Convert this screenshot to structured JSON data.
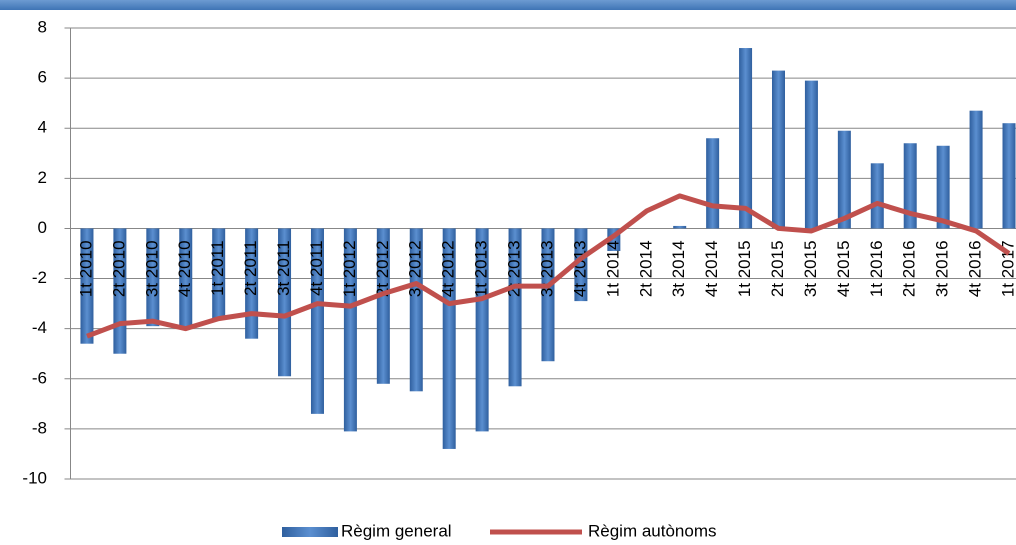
{
  "chart_data": {
    "type": "bar-line",
    "categories": [
      "1t 2010",
      "2t 2010",
      "3t 2010",
      "4t 2010",
      "1t 2011",
      "2t 2011",
      "3t 2011",
      "4t 2011",
      "1t 2012",
      "2t 2012",
      "3t 2012",
      "4t 2012",
      "1t 2013",
      "2t 2013",
      "3t 2013",
      "4t 2013",
      "1t 2014",
      "2t 2014",
      "3t 2014",
      "4t 2014",
      "1t 2015",
      "2t 2015",
      "3t 2015",
      "4t 2015",
      "1t 2016",
      "2t 2016",
      "3t 2016",
      "4t 2016",
      "1t 2017"
    ],
    "series": [
      {
        "name": "Règim general",
        "type": "bar",
        "color": "#4a7ebb",
        "values": [
          -4.6,
          -5.0,
          -3.9,
          -3.9,
          -3.6,
          -4.4,
          -5.9,
          -7.4,
          -8.1,
          -6.2,
          -6.5,
          -8.8,
          -8.1,
          -6.3,
          -5.3,
          -2.9,
          -0.9,
          0.0,
          0.1,
          3.6,
          7.2,
          6.3,
          5.9,
          3.9,
          2.6,
          3.4,
          3.3,
          4.7,
          4.2
        ]
      },
      {
        "name": "Règim autònoms",
        "type": "line",
        "color": "#c0504d",
        "values": [
          -4.3,
          -3.8,
          -3.7,
          -4.0,
          -3.6,
          -3.4,
          -3.5,
          -3.0,
          -3.1,
          -2.6,
          -2.2,
          -3.0,
          -2.8,
          -2.3,
          -2.3,
          -1.2,
          -0.3,
          0.7,
          1.3,
          0.9,
          0.8,
          0.0,
          -0.1,
          0.4,
          1.0,
          0.6,
          0.3,
          -0.1,
          -1.0
        ]
      }
    ],
    "ylim": [
      -10,
      8
    ],
    "yticks": [
      -10,
      -8,
      -6,
      -4,
      -2,
      0,
      2,
      4,
      6,
      8
    ],
    "grid": true
  }
}
